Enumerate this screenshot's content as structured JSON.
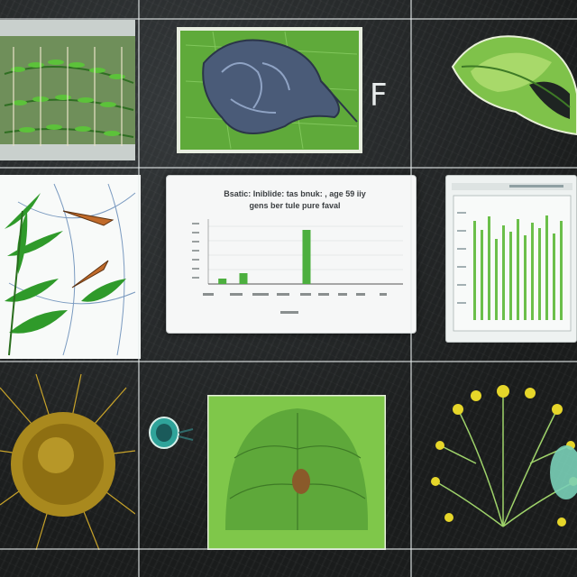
{
  "board": {
    "letter": "F"
  },
  "chart_data": {
    "type": "bar",
    "title": "Bsatic: Iniblide: tas bnuk: , age 59 iiy",
    "subtitle": "gens ber tule pure faval",
    "categories": [
      "",
      "",
      "",
      "",
      "",
      "",
      "",
      "",
      ""
    ],
    "values": [
      1,
      2,
      0,
      0,
      10,
      0,
      0,
      0,
      0
    ],
    "ylim": [
      0,
      12
    ],
    "bar_color": "#4caf3e"
  },
  "colors": {
    "grid": "#e6ebeb",
    "leaf": "#3f9b2b",
    "card": "#f6f7f7"
  }
}
